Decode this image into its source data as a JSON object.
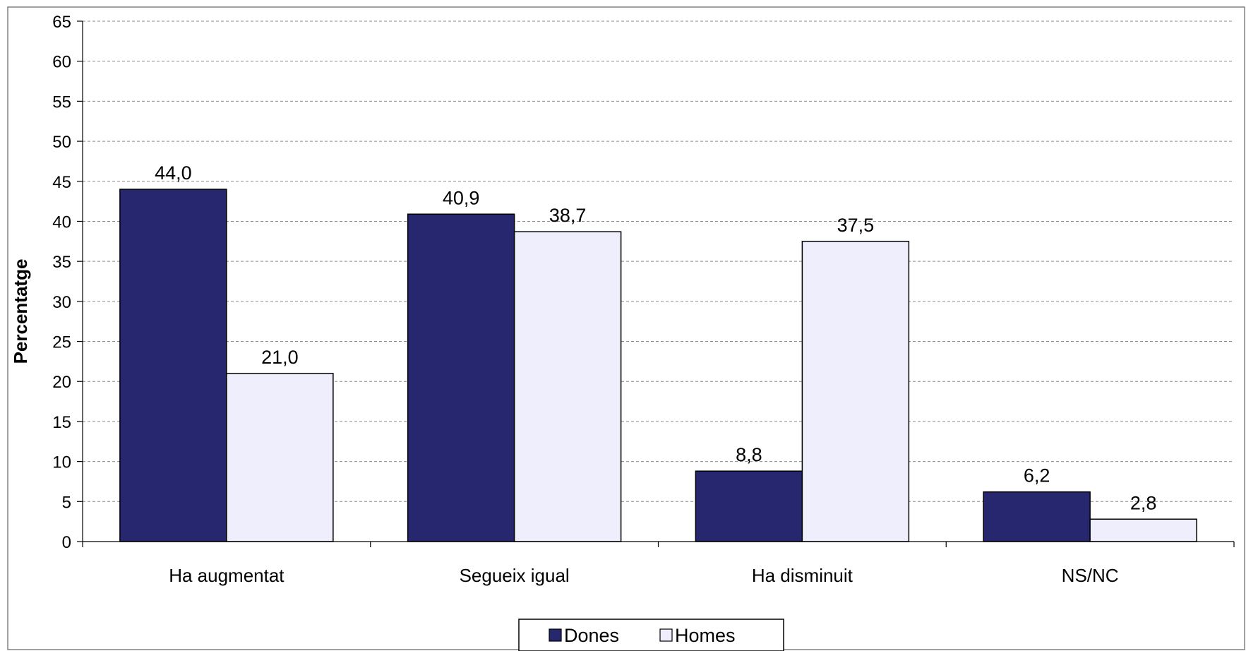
{
  "chart_data": {
    "type": "bar",
    "title": "",
    "xlabel": "",
    "ylabel": "Percentatge",
    "ylim": [
      0,
      65
    ],
    "ytick_step": 5,
    "grid": true,
    "legend_position": "bottom",
    "categories": [
      "Ha augmentat",
      "Segueix igual",
      "Ha disminuit",
      "NS/NC"
    ],
    "series": [
      {
        "name": "Dones",
        "color": "#27276f",
        "values": [
          44.0,
          40.9,
          8.8,
          6.2
        ],
        "labels": [
          "44,0",
          "40,9",
          "8,8",
          "6,2"
        ]
      },
      {
        "name": "Homes",
        "color": "#eeeefc",
        "values": [
          21.0,
          38.7,
          37.5,
          2.8
        ],
        "labels": [
          "21,0",
          "38,7",
          "37,5",
          "2,8"
        ]
      }
    ]
  }
}
